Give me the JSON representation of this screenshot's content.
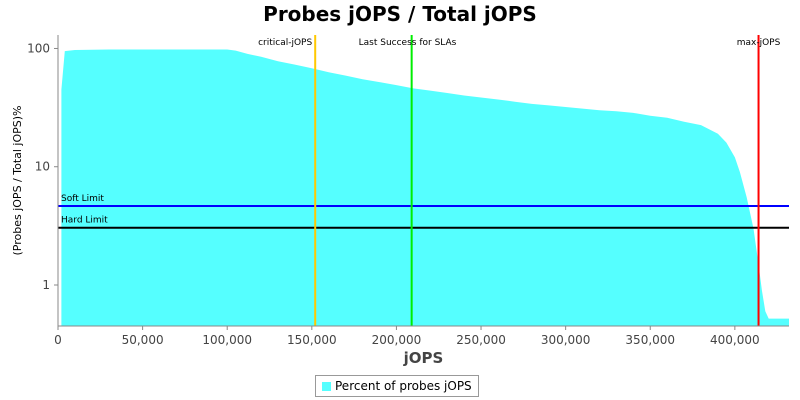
{
  "chart_data": {
    "type": "area",
    "title": "Probes jOPS / Total jOPS",
    "xlabel": "jOPS",
    "ylabel": "(Probes jOPS / Total jOPS)%",
    "y_scale": "log",
    "xlim": [
      0,
      432000
    ],
    "ylim": [
      0.45,
      130
    ],
    "x_ticks": [
      0,
      50000,
      100000,
      150000,
      200000,
      250000,
      300000,
      350000,
      400000
    ],
    "x_tick_labels": [
      "0",
      "50,000",
      "100,000",
      "150,000",
      "200,000",
      "250,000",
      "300,000",
      "350,000",
      "400,000"
    ],
    "y_ticks": [
      1,
      10,
      100
    ],
    "y_tick_labels": [
      "1",
      "10",
      "100"
    ],
    "legend": "bottom-center",
    "series": [
      {
        "name": "Percent of probes jOPS",
        "color": "#55ffff",
        "points": [
          [
            2000,
            45
          ],
          [
            4000,
            95
          ],
          [
            10000,
            97
          ],
          [
            30000,
            98
          ],
          [
            60000,
            98
          ],
          [
            100000,
            98
          ],
          [
            105000,
            96
          ],
          [
            112000,
            90
          ],
          [
            120000,
            85
          ],
          [
            130000,
            78
          ],
          [
            140000,
            73
          ],
          [
            150000,
            68
          ],
          [
            160000,
            63
          ],
          [
            170000,
            59
          ],
          [
            180000,
            55
          ],
          [
            190000,
            52
          ],
          [
            200000,
            49
          ],
          [
            210000,
            46
          ],
          [
            220000,
            44
          ],
          [
            230000,
            42
          ],
          [
            240000,
            40
          ],
          [
            250000,
            38.5
          ],
          [
            260000,
            37
          ],
          [
            270000,
            35.5
          ],
          [
            280000,
            34
          ],
          [
            290000,
            33
          ],
          [
            300000,
            32
          ],
          [
            310000,
            31
          ],
          [
            320000,
            30
          ],
          [
            330000,
            29.5
          ],
          [
            340000,
            28.5
          ],
          [
            350000,
            27
          ],
          [
            360000,
            26
          ],
          [
            370000,
            24
          ],
          [
            380000,
            22.5
          ],
          [
            390000,
            19
          ],
          [
            395000,
            16
          ],
          [
            400000,
            12
          ],
          [
            403000,
            9
          ],
          [
            407000,
            5.5
          ],
          [
            411000,
            3
          ],
          [
            414000,
            1.5
          ],
          [
            416000,
            0.9
          ],
          [
            418000,
            0.6
          ],
          [
            420000,
            0.52
          ],
          [
            432000,
            0.52
          ]
        ]
      }
    ],
    "vertical_markers": [
      {
        "label": "critical-jOPS",
        "x": 152000,
        "color": "#ffc800"
      },
      {
        "label": "Last Success for SLAs",
        "x": 209000,
        "color": "#00ee00"
      },
      {
        "label": "max-jOPS",
        "x": 414000,
        "color": "#ff0000"
      }
    ],
    "horizontal_markers": [
      {
        "label": "Soft Limit",
        "y": 4.65,
        "color": "#0000ff"
      },
      {
        "label": "Hard Limit",
        "y": 3.05,
        "color": "#000000"
      }
    ]
  }
}
